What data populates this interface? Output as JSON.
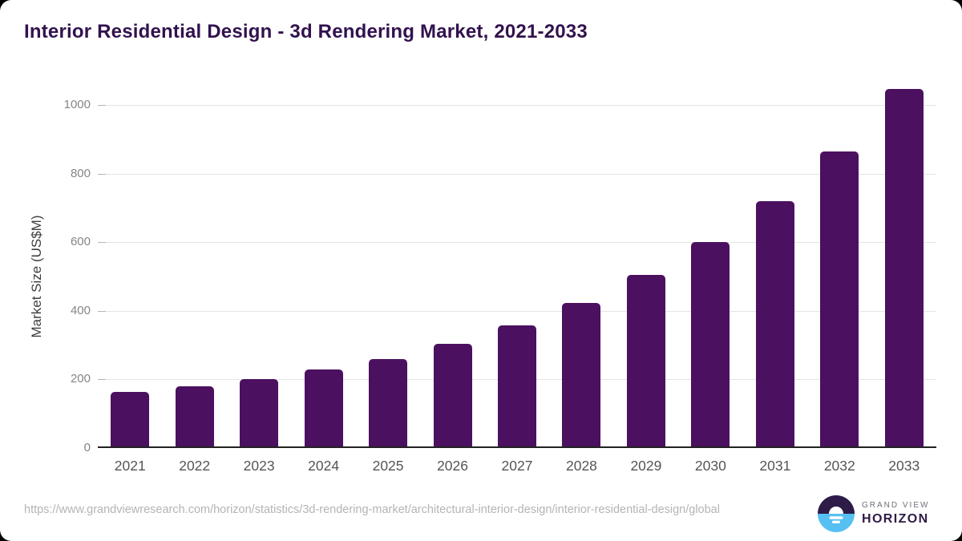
{
  "page": {
    "title": "Interior Residential Design - 3d Rendering Market, 2021-2033"
  },
  "chart_data": {
    "type": "bar",
    "title": "Interior Residential Design - 3d Rendering Market, 2021-2033",
    "categories": [
      "2021",
      "2022",
      "2023",
      "2024",
      "2025",
      "2026",
      "2027",
      "2028",
      "2029",
      "2030",
      "2031",
      "2032",
      "2033"
    ],
    "values": [
      163,
      181,
      202,
      228,
      259,
      304,
      358,
      424,
      504,
      600,
      719,
      864,
      1046
    ],
    "xlabel": "",
    "ylabel": "Market Size (US$M)",
    "ylim": [
      0,
      1050
    ],
    "yticks": [
      0,
      200,
      400,
      600,
      800,
      1000
    ],
    "grid": true,
    "legend": false,
    "bar_color": "#4b1060"
  },
  "footer": {
    "source_url": "https://www.grandviewresearch.com/horizon/statistics/3d-rendering-market/architectural-interior-design/interior-residential-design/global",
    "logo": {
      "brand_top": "GRAND VIEW",
      "brand_bottom": "HORIZON",
      "mark_top_color": "#2e1b47",
      "mark_bottom_color": "#57c0f2"
    }
  },
  "colors": {
    "title_text": "#32124e",
    "bar": "#4b1060",
    "x_tick_labels": "#555555",
    "y_tick_labels": "#858585",
    "gridline": "#e4e4e4",
    "axis_line": "#222222",
    "source_text": "#b4b4b4"
  }
}
